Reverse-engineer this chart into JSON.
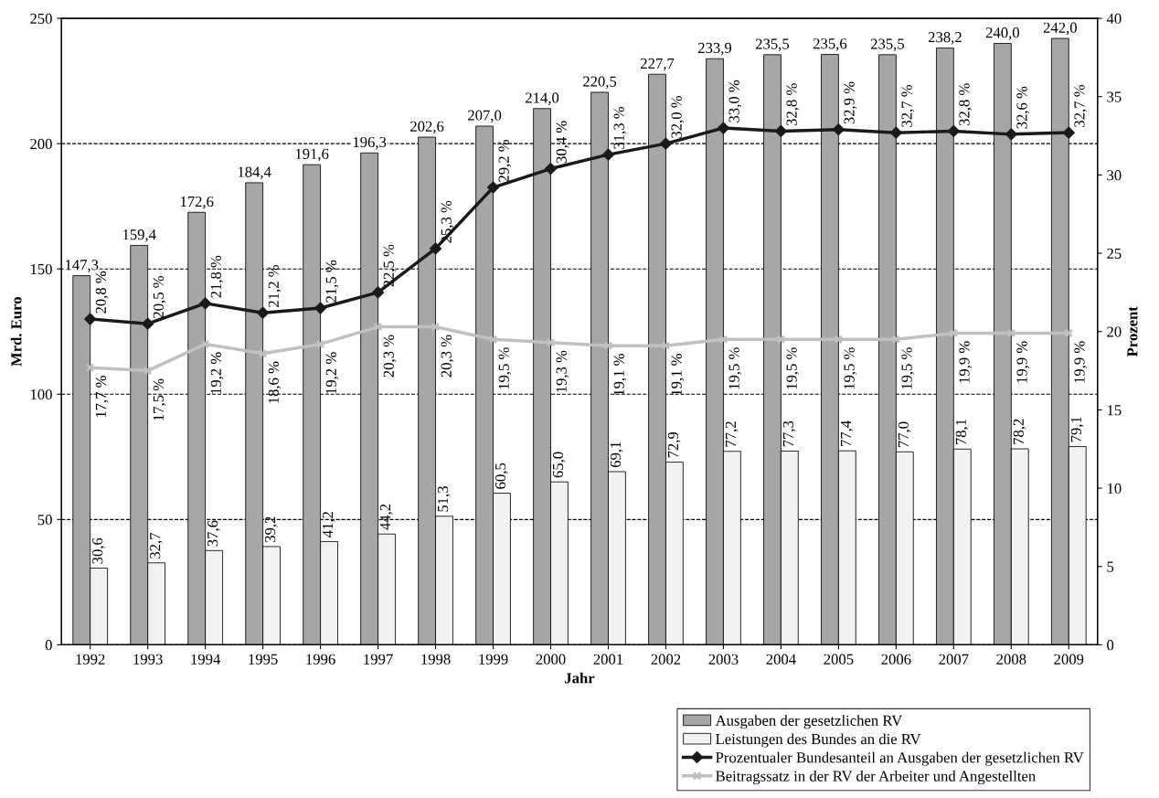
{
  "chart_data": {
    "type": "bar",
    "xlabel": "Jahr",
    "ylabel": "Mrd. Euro",
    "y2label": "Prozent",
    "categories": [
      "1992",
      "1993",
      "1994",
      "1995",
      "1996",
      "1997",
      "1998",
      "1999",
      "2000",
      "2001",
      "2002",
      "2003",
      "2004",
      "2005",
      "2006",
      "2007",
      "2008",
      "2009"
    ],
    "series": [
      {
        "name": "Ausgaben der gesetzlichen RV",
        "color": "#a6a6a6",
        "values": [
          147.3,
          159.4,
          172.6,
          184.4,
          191.6,
          196.3,
          202.6,
          207.0,
          214.0,
          220.5,
          227.7,
          233.9,
          235.5,
          235.6,
          235.5,
          238.2,
          240.0,
          242.0
        ],
        "value_labels": [
          "147,3",
          "159,4",
          "172,6",
          "184,4",
          "191,6",
          "196,3",
          "202,6",
          "207,0",
          "214,0",
          "220,5",
          "227,7",
          "233,9",
          "235,5",
          "235,6",
          "235,5",
          "238,2",
          "240,0",
          "242,0"
        ]
      },
      {
        "name": "Leistungen des Bundes an die RV",
        "color": "#f2f2f2",
        "values": [
          30.6,
          32.7,
          37.6,
          39.2,
          41.2,
          44.2,
          51.3,
          60.5,
          65.0,
          69.1,
          72.9,
          77.2,
          77.3,
          77.4,
          77.0,
          78.1,
          78.2,
          79.1
        ],
        "value_labels": [
          "30,6",
          "32,7",
          "37,6",
          "39,2",
          "41,2",
          "44,2",
          "51,3",
          "60,5",
          "65,0",
          "69,1",
          "72,9",
          "77,2",
          "77,3",
          "77,4",
          "77,0",
          "78,1",
          "78,2",
          "79,1"
        ]
      },
      {
        "name": "Prozentualer Bundesanteil an Ausgaben der gesetzlichen RV",
        "type": "line",
        "axis": "y2",
        "marker": "diamond",
        "color": "#1a1a1a",
        "values": [
          20.8,
          20.5,
          21.8,
          21.2,
          21.5,
          22.5,
          25.3,
          29.2,
          30.4,
          31.3,
          32.0,
          33.0,
          32.8,
          32.9,
          32.7,
          32.8,
          32.6,
          32.7
        ],
        "value_labels": [
          "20,8 %",
          "20,5 %",
          "21,8 %",
          "21,2 %",
          "21,5 %",
          "22,5 %",
          "25,3 %",
          "29,2 %",
          "30,4 %",
          "31,3 %",
          "32,0 %",
          "33,0 %",
          "32,8 %",
          "32,9 %",
          "32,7 %",
          "32,8 %",
          "32,6 %",
          "32,7 %"
        ]
      },
      {
        "name": "Beitragssatz in der RV der Arbeiter und Angestellten",
        "type": "line",
        "axis": "y2",
        "marker": "cross",
        "color": "#c0c0c0",
        "values": [
          17.7,
          17.5,
          19.2,
          18.6,
          19.2,
          20.3,
          20.3,
          19.5,
          19.3,
          19.1,
          19.1,
          19.5,
          19.5,
          19.5,
          19.5,
          19.9,
          19.9,
          19.9
        ],
        "value_labels": [
          "17,7 %",
          "17,5 %",
          "19,2 %",
          "18,6 %",
          "19,2 %",
          "20,3 %",
          "20,3 %",
          "19,5 %",
          "19,3 %",
          "19,1 %",
          "19,1 %",
          "19,5 %",
          "19,5 %",
          "19,5 %",
          "19,5 %",
          "19,9 %",
          "19,9 %",
          "19,9 %"
        ]
      }
    ],
    "ylim": [
      0,
      250
    ],
    "yticks": [
      0,
      50,
      100,
      150,
      200,
      250
    ],
    "y2lim": [
      0,
      40
    ],
    "y2ticks": [
      0,
      5,
      10,
      15,
      20,
      25,
      30,
      35,
      40
    ],
    "grid": "y",
    "legend": "bottom right"
  }
}
